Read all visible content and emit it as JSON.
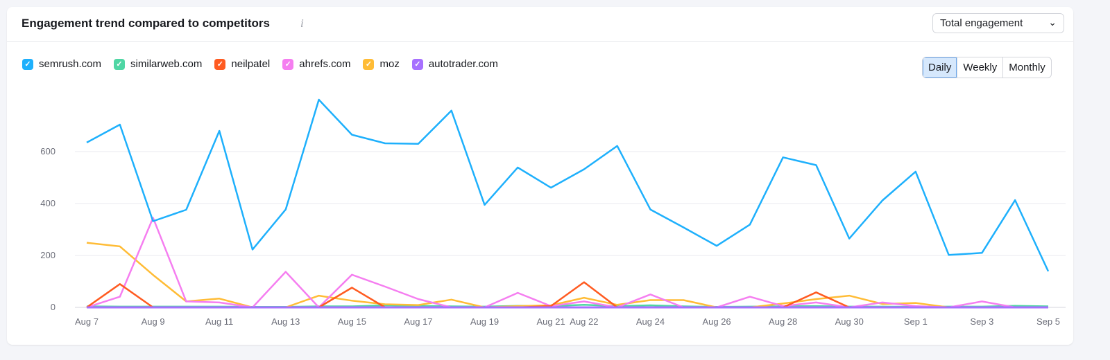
{
  "header": {
    "title": "Engagement trend compared to competitors",
    "info_icon": "i",
    "dropdown": "Total engagement"
  },
  "period_buttons": [
    "Daily",
    "Weekly",
    "Monthly"
  ],
  "active_period": "Daily",
  "chart_data": {
    "type": "line",
    "x": [
      "Aug 7",
      "Aug 8",
      "Aug 9",
      "Aug 10",
      "Aug 11",
      "Aug 12",
      "Aug 13",
      "Aug 14",
      "Aug 15",
      "Aug 16",
      "Aug 17",
      "Aug 18",
      "Aug 19",
      "Aug 20",
      "Aug 21",
      "Aug 22",
      "Aug 23",
      "Aug 24",
      "Aug 25",
      "Aug 26",
      "Aug 27",
      "Aug 28",
      "Aug 29",
      "Aug 30",
      "Aug 31",
      "Sep 1",
      "Sep 2",
      "Sep 3",
      "Sep 4",
      "Sep 5"
    ],
    "x_tick_labels": [
      "Aug 7",
      "Aug 9",
      "Aug 11",
      "Aug 13",
      "Aug 15",
      "Aug 17",
      "Aug 19",
      "Aug 21",
      "Aug 22",
      "Aug 24",
      "Aug 26",
      "Aug 28",
      "Aug 30",
      "Sep 1",
      "Sep 3",
      "Sep 5"
    ],
    "y_ticks": [
      0,
      200,
      400,
      600
    ],
    "ylim": [
      0,
      800
    ],
    "grid": true,
    "legend": "top-left",
    "series": [
      {
        "name": "semrush.com",
        "color": "#1eb0fc",
        "values": [
          635,
          704,
          332,
          376,
          680,
          223,
          377,
          800,
          665,
          632,
          630,
          758,
          395,
          539,
          461,
          532,
          622,
          377,
          308,
          237,
          319,
          578,
          548,
          265,
          412,
          523,
          202,
          210,
          413,
          139
        ]
      },
      {
        "name": "similarweb.com",
        "color": "#4fd6a4",
        "values": [
          4,
          3,
          3,
          3,
          3,
          2,
          2,
          4,
          4,
          8,
          6,
          4,
          3,
          6,
          5,
          10,
          5,
          8,
          4,
          2,
          3,
          4,
          5,
          3,
          3,
          2,
          3,
          3,
          6,
          4
        ]
      },
      {
        "name": "neilpatel",
        "color": "#ff5b21",
        "values": [
          0,
          90,
          0,
          0,
          0,
          0,
          0,
          0,
          76,
          0,
          0,
          0,
          0,
          0,
          5,
          97,
          0,
          0,
          0,
          0,
          0,
          0,
          58,
          0,
          0,
          0,
          0,
          0,
          0,
          0
        ]
      },
      {
        "name": "ahrefs.com",
        "color": "#f57ef0",
        "values": [
          0,
          41,
          345,
          23,
          19,
          0,
          137,
          0,
          126,
          80,
          32,
          0,
          0,
          56,
          5,
          23,
          0,
          50,
          0,
          0,
          41,
          5,
          19,
          0,
          19,
          5,
          0,
          23,
          0,
          0
        ]
      },
      {
        "name": "moz",
        "color": "#ffbc36",
        "values": [
          249,
          235,
          125,
          23,
          34,
          0,
          0,
          45,
          26,
          12,
          9,
          30,
          0,
          5,
          8,
          37,
          10,
          28,
          28,
          0,
          0,
          15,
          32,
          45,
          13,
          17,
          0,
          0,
          0,
          0
        ]
      },
      {
        "name": "autotrader.com",
        "color": "#a770ff",
        "values": [
          0,
          0,
          0,
          0,
          0,
          0,
          0,
          0,
          0,
          0,
          0,
          0,
          0,
          0,
          0,
          0,
          0,
          0,
          0,
          0,
          0,
          0,
          0,
          0,
          0,
          0,
          0,
          0,
          0,
          0
        ]
      }
    ]
  }
}
